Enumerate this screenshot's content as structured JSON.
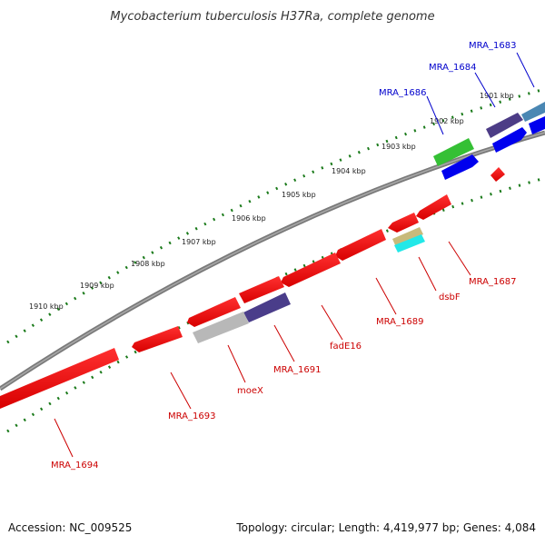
{
  "title": "Mycobacterium tuberculosis H37Ra, complete genome",
  "footer": {
    "accession": "Accession: NC_009525",
    "topology": "Topology: circular; Length: 4,419,977 bp; Genes: 4,084"
  },
  "ticks": [
    "1901 kbp",
    "1902 kbp",
    "1903 kbp",
    "1904 kbp",
    "1905 kbp",
    "1906 kbp",
    "1907 kbp",
    "1908 kbp",
    "1909 kbp",
    "1910 kbp"
  ],
  "forward_genes": [
    "MRA_1683",
    "MRA_1684",
    "MRA_1686"
  ],
  "reverse_genes": [
    "MRA_1687",
    "dsbF",
    "MRA_1689",
    "fadE16",
    "MRA_1691",
    "moeX",
    "MRA_1693",
    "MRA_1694"
  ],
  "colors": {
    "forward_label": "#0000cc",
    "reverse_label": "#cc0000",
    "tick_dots": "#1a7a1a",
    "backbone": "#7a7a7a"
  }
}
